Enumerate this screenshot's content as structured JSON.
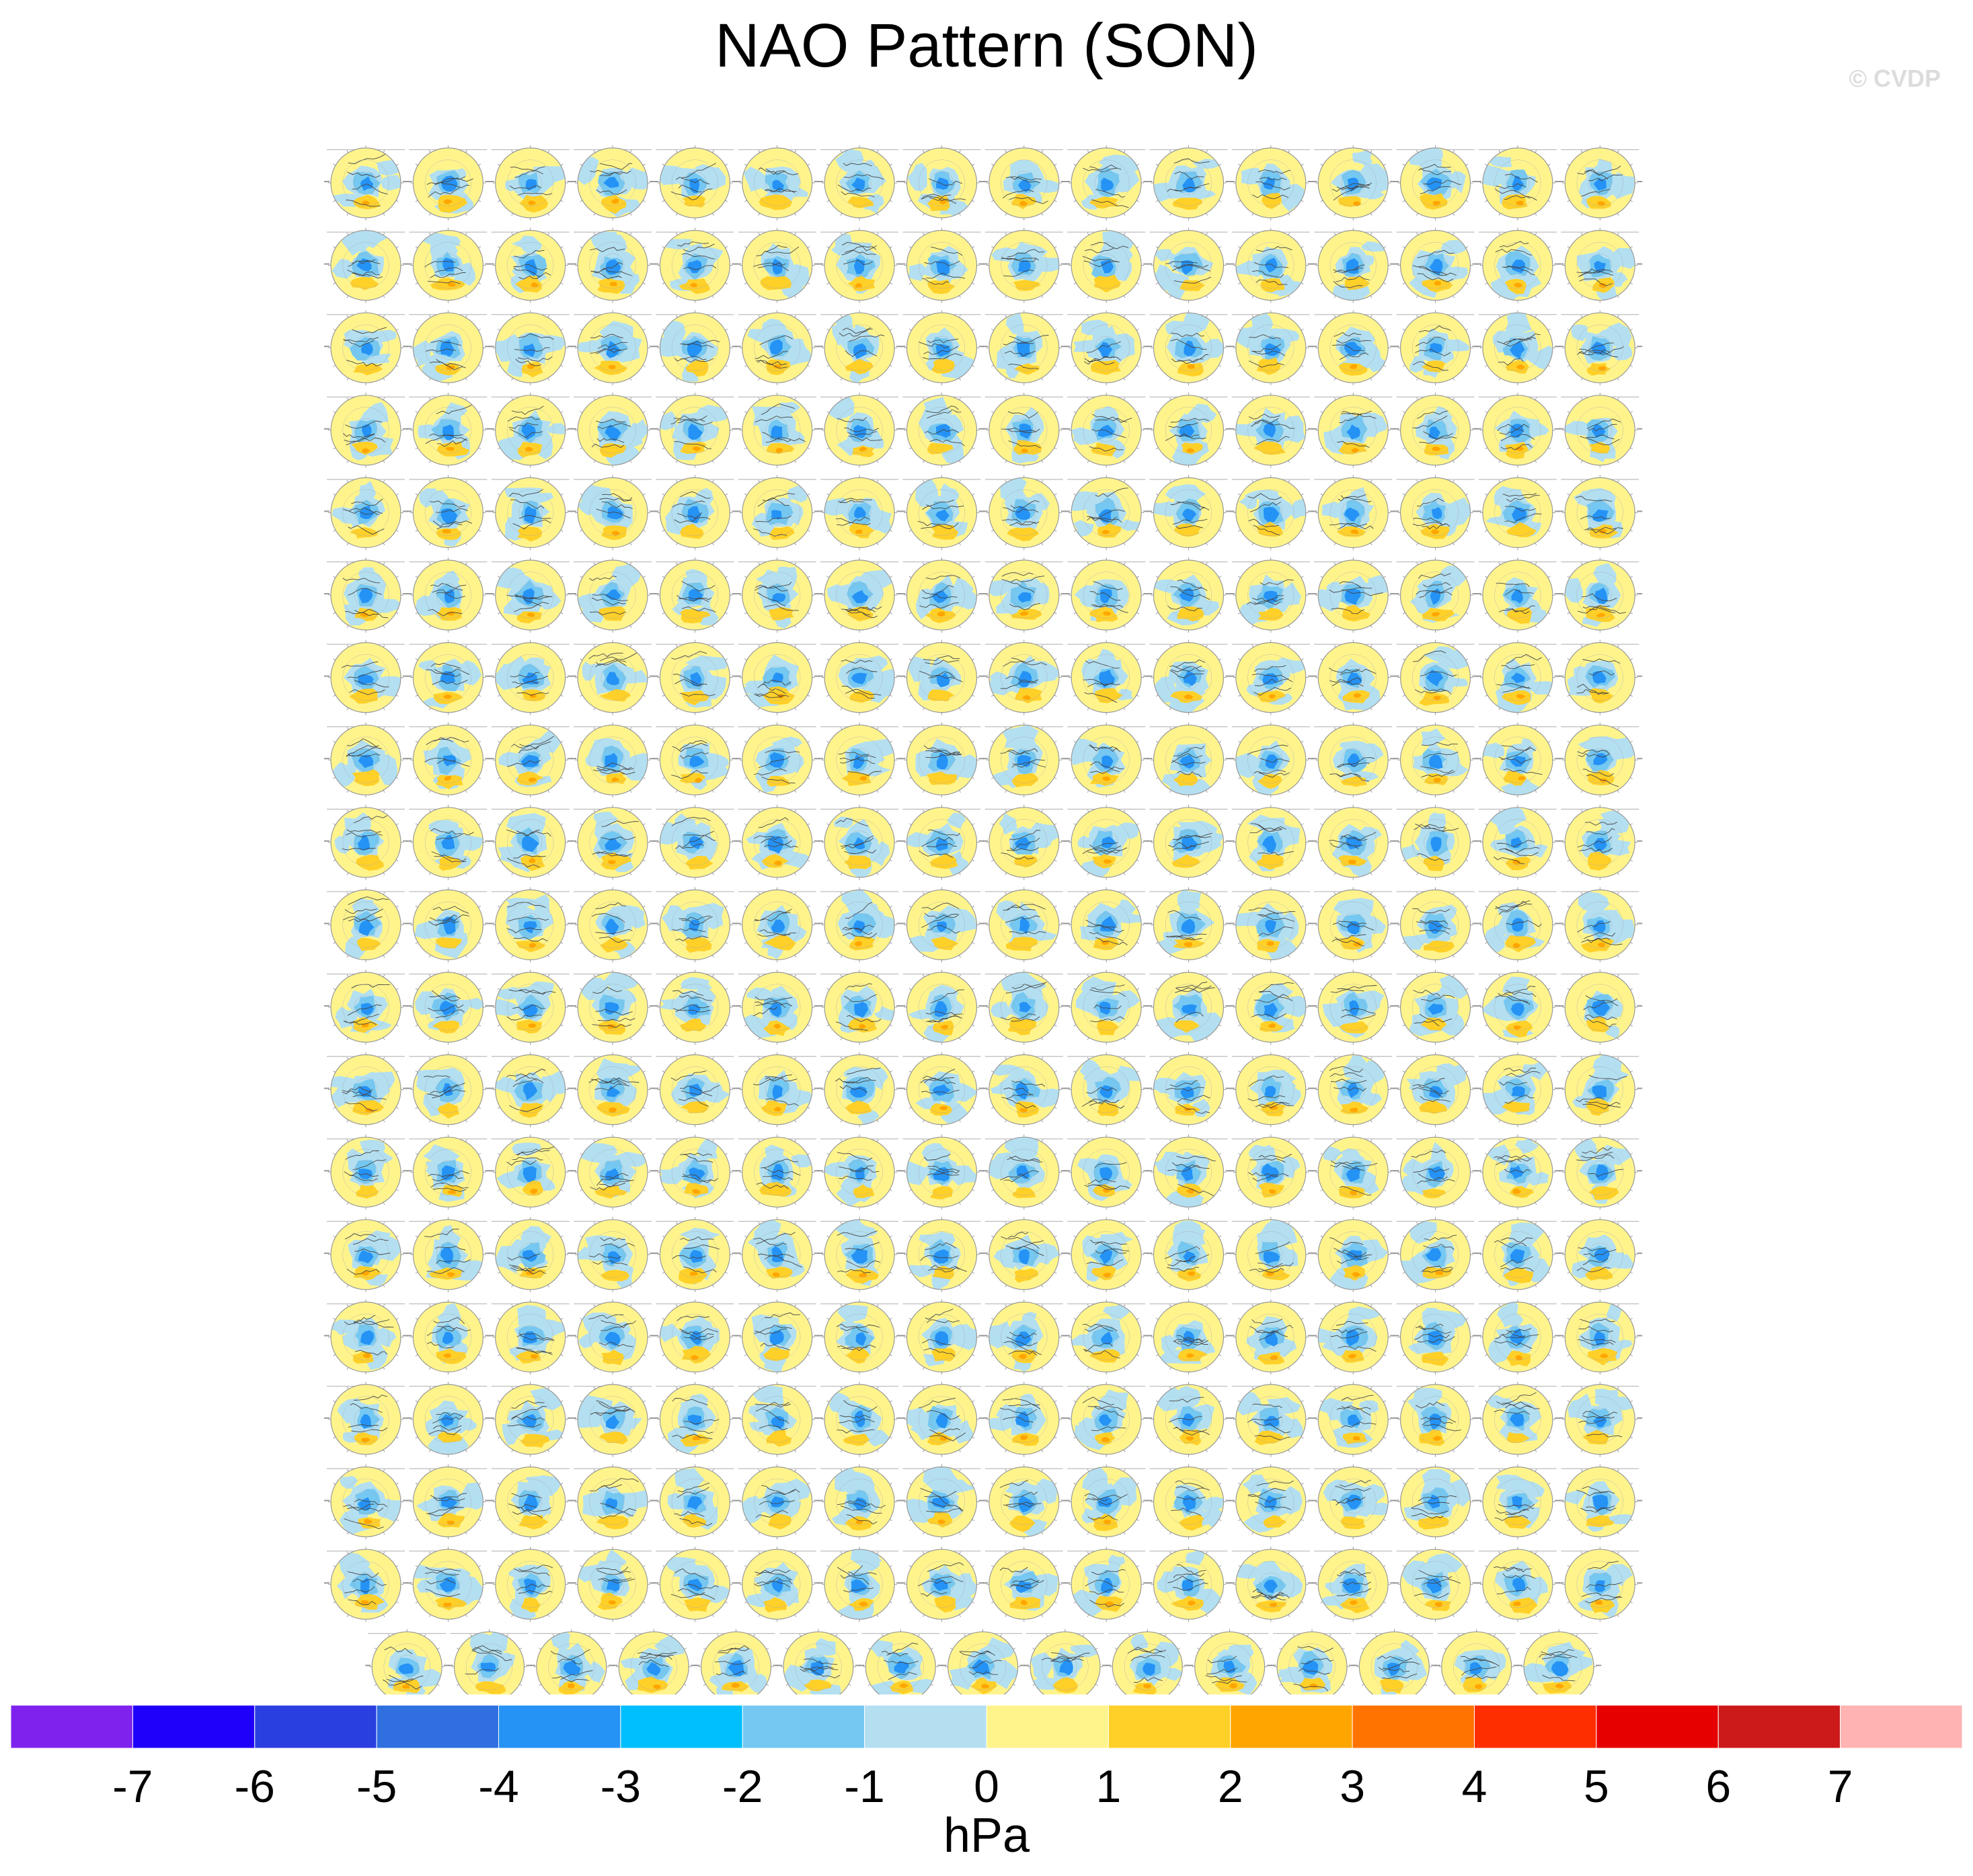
{
  "title": "NAO Pattern (SON)",
  "watermark": "© CVDP",
  "panel_grid": {
    "full_rows": 18,
    "columns": 16,
    "last_row_count": 15
  },
  "colorbar": {
    "units": "hPa",
    "tick_labels": [
      "-7",
      "-6",
      "-5",
      "-4",
      "-3",
      "-2",
      "-1",
      "0",
      "1",
      "2",
      "3",
      "4",
      "5",
      "6",
      "7"
    ],
    "colors": [
      "#7f22ee",
      "#1e00fa",
      "#2a3fe0",
      "#2f6fe0",
      "#2592f5",
      "#00bfff",
      "#74c8f2",
      "#b3dff1",
      "#fff48c",
      "#ffd028",
      "#ffa500",
      "#ff7300",
      "#ff2e00",
      "#e60000",
      "#cc1a1a",
      "#ffb3b3"
    ]
  },
  "map_colors": {
    "background": "#fff48c",
    "light_blue": "#b3dff1",
    "mid_blue": "#74c8f2",
    "blue": "#2592f5",
    "orange": "#ffd028",
    "dark_orange": "#ffa500",
    "coast": "#444444",
    "rim": "#999999"
  }
}
